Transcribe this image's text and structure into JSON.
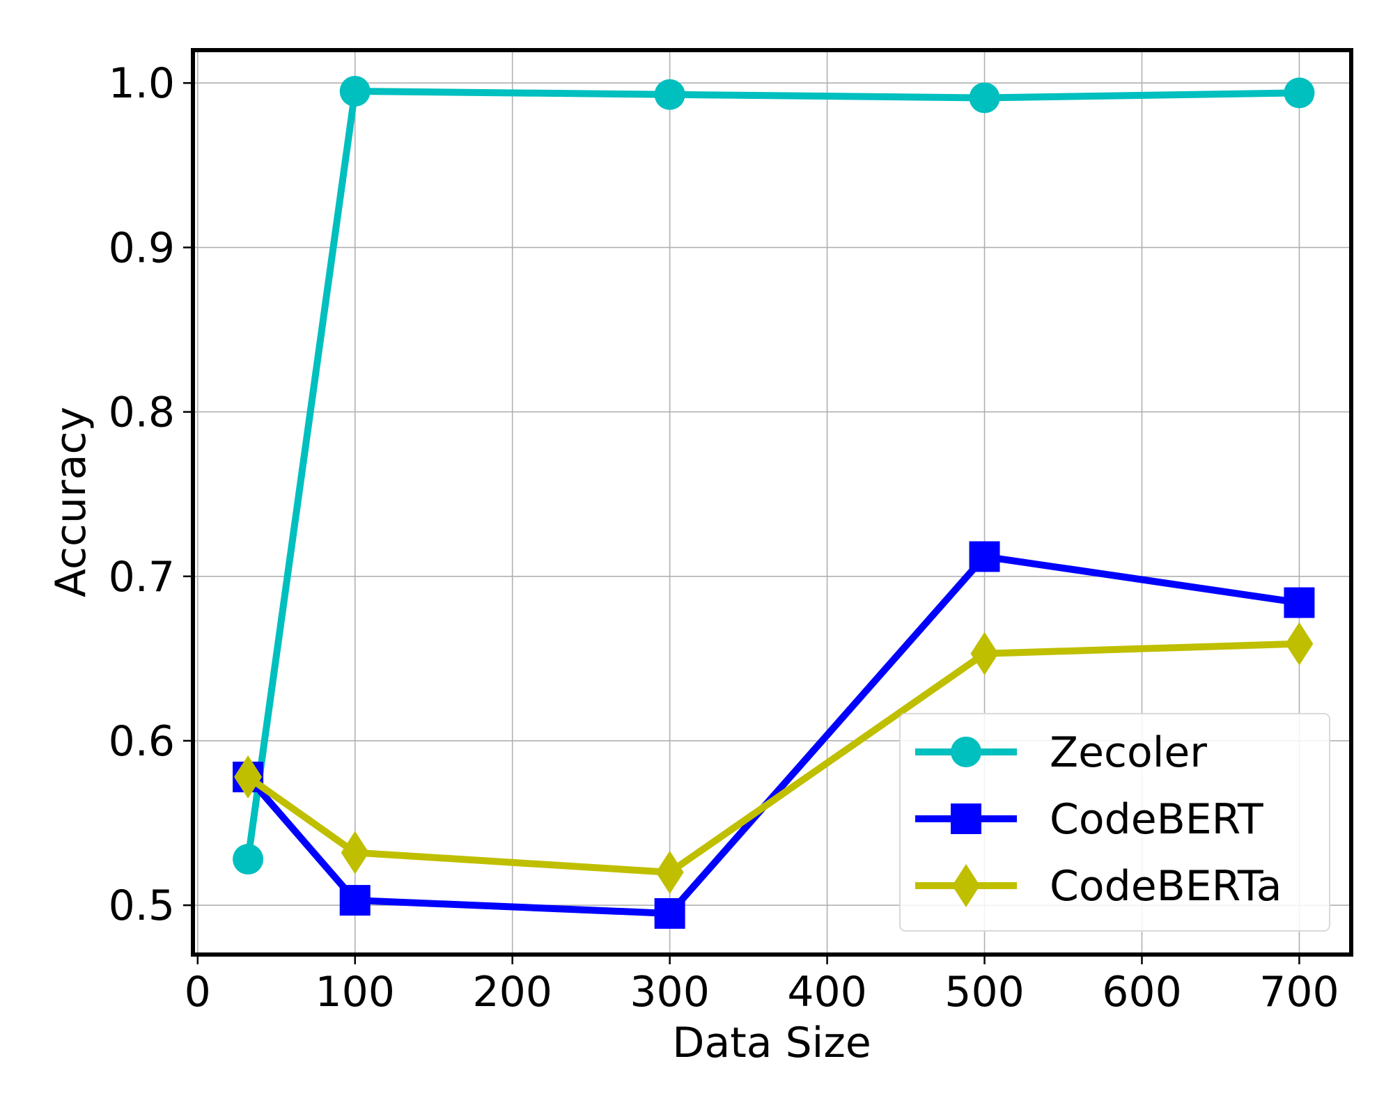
{
  "chart_data": {
    "type": "line",
    "title": "",
    "xlabel": "Data Size",
    "ylabel": "Accuracy",
    "xlim": [
      -3,
      733
    ],
    "ylim": [
      0.47,
      1.02
    ],
    "xticks": [
      0,
      100,
      200,
      300,
      400,
      500,
      600,
      700
    ],
    "xtick_labels": [
      "0",
      "100",
      "200",
      "300",
      "400",
      "500",
      "600",
      "700"
    ],
    "yticks": [
      0.5,
      0.6,
      0.7,
      0.8,
      0.9,
      1.0
    ],
    "ytick_labels": [
      "0.5",
      "0.6",
      "0.7",
      "0.8",
      "0.9",
      "1.0"
    ],
    "grid": true,
    "legend_position": "lower-right",
    "series": [
      {
        "name": "Zecoler",
        "color": "#00bfbf",
        "marker": "circle",
        "x": [
          32,
          100,
          300,
          500,
          700
        ],
        "y": [
          0.528,
          0.995,
          0.993,
          0.991,
          0.994
        ]
      },
      {
        "name": "CodeBERT",
        "color": "#0000ff",
        "marker": "square",
        "x": [
          32,
          100,
          300,
          500,
          700
        ],
        "y": [
          0.578,
          0.503,
          0.495,
          0.712,
          0.684
        ]
      },
      {
        "name": "CodeBERTa",
        "color": "#bfbf00",
        "marker": "diamond",
        "x": [
          32,
          100,
          300,
          500,
          700
        ],
        "y": [
          0.578,
          0.532,
          0.52,
          0.653,
          0.659
        ]
      }
    ]
  }
}
